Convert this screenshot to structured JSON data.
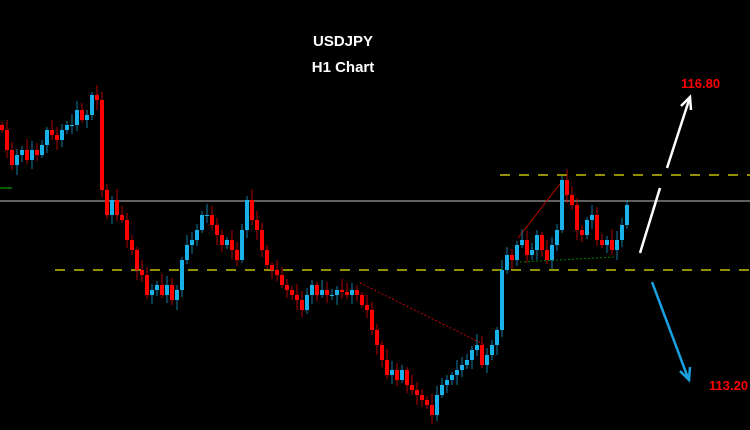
{
  "chart_data": {
    "type": "candlestick",
    "title": "USDJPY",
    "subtitle": "H1 Chart",
    "colors": {
      "bullish": "#1ab0e8",
      "bearish": "#ff0000",
      "background": "#000000",
      "levels": "#e6e600",
      "current_price_line": "#808080"
    },
    "closes": [
      300,
      280,
      265,
      275,
      280,
      270,
      280,
      275,
      285,
      300,
      295,
      290,
      300,
      305,
      305,
      320,
      310,
      315,
      335,
      330,
      240,
      215,
      230,
      215,
      210,
      190,
      180,
      160,
      155,
      135,
      140,
      145,
      135,
      145,
      130,
      140,
      170,
      185,
      190,
      200,
      215,
      215,
      205,
      195,
      185,
      190,
      180,
      170,
      200,
      230,
      210,
      200,
      180,
      165,
      160,
      155,
      145,
      140,
      135,
      130,
      120,
      135,
      145,
      135,
      140,
      135,
      135,
      140,
      138,
      135,
      140,
      135,
      125,
      120,
      100,
      85,
      70,
      55,
      60,
      50,
      60,
      45,
      40,
      35,
      30,
      25,
      15,
      35,
      45,
      50,
      55,
      60,
      65,
      70,
      80,
      85,
      65,
      75,
      85,
      100,
      160,
      175,
      170,
      185,
      190,
      175,
      180,
      195,
      180,
      170,
      185,
      200,
      250,
      235,
      225,
      200,
      195,
      210,
      215,
      190,
      185,
      190,
      180,
      190,
      205,
      225
    ],
    "levels": {
      "resistance": 255,
      "support": 160,
      "current": 229
    },
    "arrows": [
      {
        "direction": "up",
        "color": "#ffffff",
        "target_label": "116.80"
      },
      {
        "direction": "down",
        "color": "#1aa0e0",
        "target_label": "113.20"
      }
    ],
    "grid": false
  }
}
